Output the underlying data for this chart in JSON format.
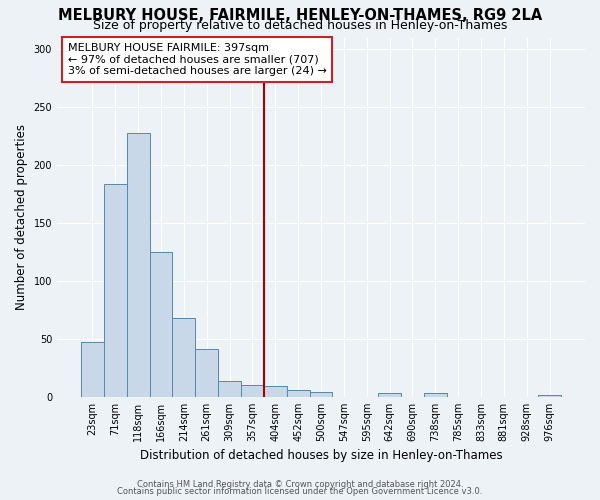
{
  "title": "MELBURY HOUSE, FAIRMILE, HENLEY-ON-THAMES, RG9 2LA",
  "subtitle": "Size of property relative to detached houses in Henley-on-Thames",
  "xlabel": "Distribution of detached houses by size in Henley-on-Thames",
  "ylabel": "Number of detached properties",
  "bar_labels": [
    "23sqm",
    "71sqm",
    "118sqm",
    "166sqm",
    "214sqm",
    "261sqm",
    "309sqm",
    "357sqm",
    "404sqm",
    "452sqm",
    "500sqm",
    "547sqm",
    "595sqm",
    "642sqm",
    "690sqm",
    "738sqm",
    "785sqm",
    "833sqm",
    "881sqm",
    "928sqm",
    "976sqm"
  ],
  "bar_values": [
    47,
    184,
    228,
    125,
    68,
    41,
    14,
    10,
    9,
    6,
    4,
    0,
    0,
    3,
    0,
    3,
    0,
    0,
    0,
    0,
    2
  ],
  "bar_color": "#c8d8e8",
  "bar_edge_color": "#5588aa",
  "vline_color": "#aa0000",
  "annotation_line1": "MELBURY HOUSE FAIRMILE: 397sqm",
  "annotation_line2": "← 97% of detached houses are smaller (707)",
  "annotation_line3": "3% of semi-detached houses are larger (24) →",
  "annotation_box_facecolor": "#ffffff",
  "annotation_box_edgecolor": "#cc2222",
  "ylim": [
    0,
    310
  ],
  "yticks": [
    0,
    50,
    100,
    150,
    200,
    250,
    300
  ],
  "footnote1": "Contains HM Land Registry data © Crown copyright and database right 2024.",
  "footnote2": "Contains public sector information licensed under the Open Government Licence v3.0.",
  "background_color": "#edf2f7",
  "grid_color": "#ffffff",
  "title_fontsize": 10.5,
  "subtitle_fontsize": 9,
  "xlabel_fontsize": 8.5,
  "ylabel_fontsize": 8.5,
  "tick_fontsize": 7,
  "annot_fontsize": 8,
  "footnote_fontsize": 6
}
